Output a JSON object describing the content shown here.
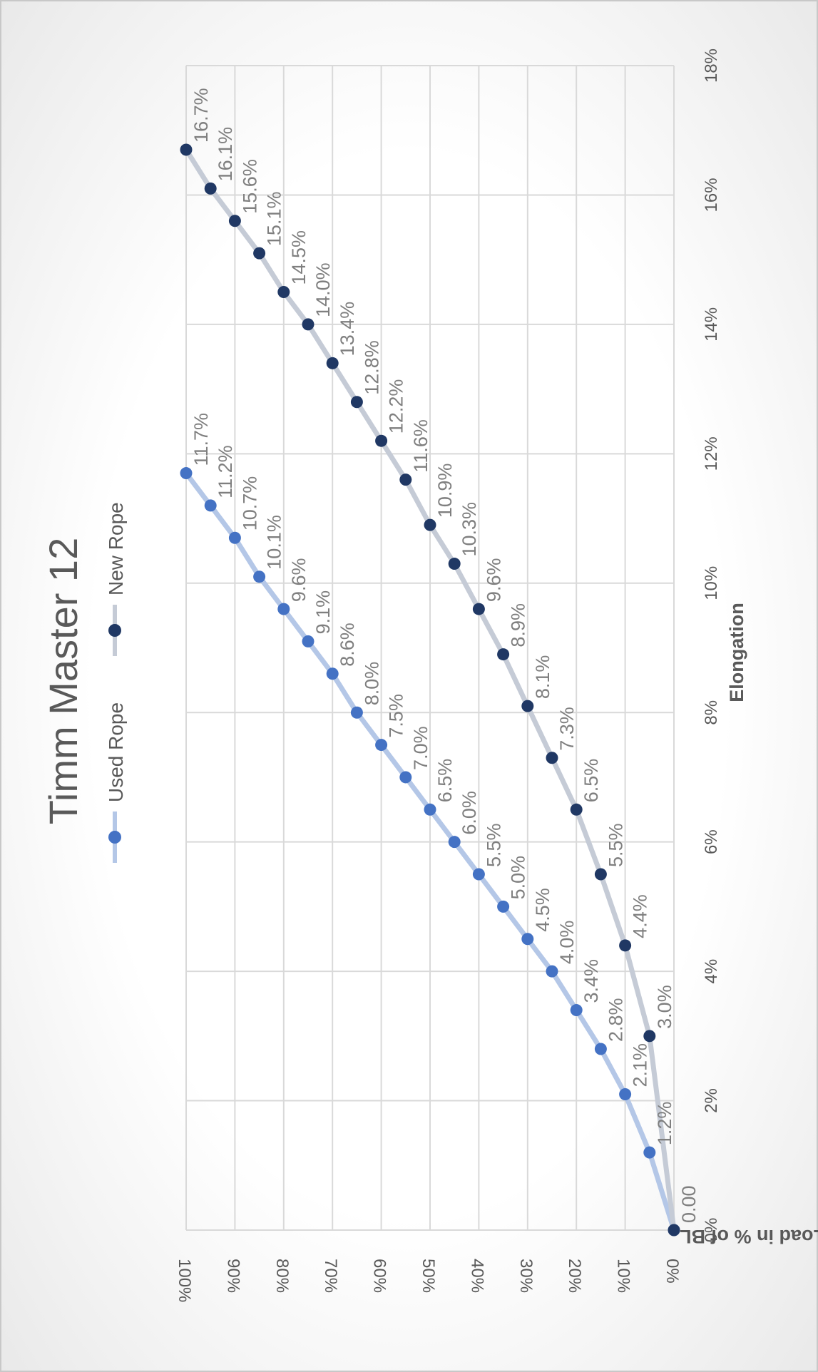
{
  "chart_data": {
    "type": "line",
    "title": "Timm Master 12",
    "xlabel": "Elongation",
    "ylabel": "Load in % of BL",
    "xlim": [
      0,
      18
    ],
    "ylim": [
      0,
      100
    ],
    "x_unit": "%",
    "y_unit": "%",
    "x_ticks": [
      "0%",
      "2%",
      "4%",
      "6%",
      "8%",
      "10%",
      "12%",
      "14%",
      "16%",
      "18%"
    ],
    "y_ticks": [
      "0%",
      "10%",
      "20%",
      "30%",
      "40%",
      "50%",
      "60%",
      "70%",
      "80%",
      "90%",
      "100%"
    ],
    "grid": true,
    "legend_position": "top",
    "orientation": "rotated 90 degrees clockwise",
    "series": [
      {
        "name": "Used Rope",
        "color": "#4472c4",
        "line_color": "#b4c7e7",
        "points": [
          {
            "x": 0,
            "y": 0
          },
          {
            "x": 1.2,
            "y": 5
          },
          {
            "x": 2.1,
            "y": 10
          },
          {
            "x": 2.8,
            "y": 15
          },
          {
            "x": 3.4,
            "y": 20
          },
          {
            "x": 4.0,
            "y": 25
          },
          {
            "x": 4.5,
            "y": 30
          },
          {
            "x": 5.0,
            "y": 35
          },
          {
            "x": 5.5,
            "y": 40
          },
          {
            "x": 6.0,
            "y": 45
          },
          {
            "x": 6.5,
            "y": 50
          },
          {
            "x": 7.0,
            "y": 55
          },
          {
            "x": 7.5,
            "y": 60
          },
          {
            "x": 8.0,
            "y": 65
          },
          {
            "x": 8.6,
            "y": 70
          },
          {
            "x": 9.1,
            "y": 75
          },
          {
            "x": 9.6,
            "y": 80
          },
          {
            "x": 10.1,
            "y": 85
          },
          {
            "x": 10.7,
            "y": 90
          },
          {
            "x": 11.2,
            "y": 95
          },
          {
            "x": 11.7,
            "y": 100
          }
        ],
        "labels": [
          "",
          "1.2%",
          "2.1%",
          "2.8%",
          "3.4%",
          "4.0%",
          "4.5%",
          "5.0%",
          "5.5%",
          "6.0%",
          "6.5%",
          "7.0%",
          "7.5%",
          "8.0%",
          "8.6%",
          "9.1%",
          "9.6%",
          "10.1%",
          "10.7%",
          "11.2%",
          "11.7%"
        ]
      },
      {
        "name": "New Rope",
        "color": "#203864",
        "line_color": "#c5cbd6",
        "points": [
          {
            "x": 0,
            "y": 0
          },
          {
            "x": 3.0,
            "y": 5
          },
          {
            "x": 4.4,
            "y": 10
          },
          {
            "x": 5.5,
            "y": 15
          },
          {
            "x": 6.5,
            "y": 20
          },
          {
            "x": 7.3,
            "y": 25
          },
          {
            "x": 8.1,
            "y": 30
          },
          {
            "x": 8.9,
            "y": 35
          },
          {
            "x": 9.6,
            "y": 40
          },
          {
            "x": 10.3,
            "y": 45
          },
          {
            "x": 10.9,
            "y": 50
          },
          {
            "x": 11.6,
            "y": 55
          },
          {
            "x": 12.2,
            "y": 60
          },
          {
            "x": 12.8,
            "y": 65
          },
          {
            "x": 13.4,
            "y": 70
          },
          {
            "x": 14.0,
            "y": 75
          },
          {
            "x": 14.5,
            "y": 80
          },
          {
            "x": 15.1,
            "y": 85
          },
          {
            "x": 15.6,
            "y": 90
          },
          {
            "x": 16.1,
            "y": 95
          },
          {
            "x": 16.7,
            "y": 100
          }
        ],
        "labels": [
          "0.00",
          "3.0%",
          "4.4%",
          "5.5%",
          "6.5%",
          "7.3%",
          "8.1%",
          "8.9%",
          "9.6%",
          "10.3%",
          "10.9%",
          "11.6%",
          "12.2%",
          "12.8%",
          "13.4%",
          "14.0%",
          "14.5%",
          "15.1%",
          "15.6%",
          "16.1%",
          "16.7%"
        ]
      }
    ]
  }
}
